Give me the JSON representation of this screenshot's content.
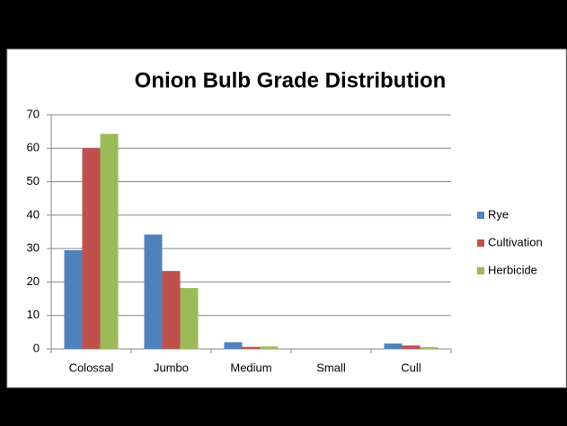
{
  "chart_data": {
    "type": "bar",
    "title": "Onion Bulb Grade Distribution",
    "categories": [
      "Colossal",
      "Jumbo",
      "Medium",
      "Small",
      "Cull"
    ],
    "series": [
      {
        "name": "Rye",
        "color": "#4f81bd",
        "values": [
          29.5,
          34.2,
          2,
          0,
          1.6
        ]
      },
      {
        "name": "Cultivation",
        "color": "#c0504d",
        "values": [
          60,
          23.3,
          0.6,
          0,
          1.0
        ]
      },
      {
        "name": "Herbicide",
        "color": "#9bbb59",
        "values": [
          64.3,
          18.2,
          0.7,
          0,
          0.5
        ]
      }
    ],
    "ylim": [
      0,
      70
    ],
    "yticks": [
      0,
      10,
      20,
      30,
      40,
      50,
      60,
      70
    ],
    "grid": true,
    "legend": "right"
  }
}
